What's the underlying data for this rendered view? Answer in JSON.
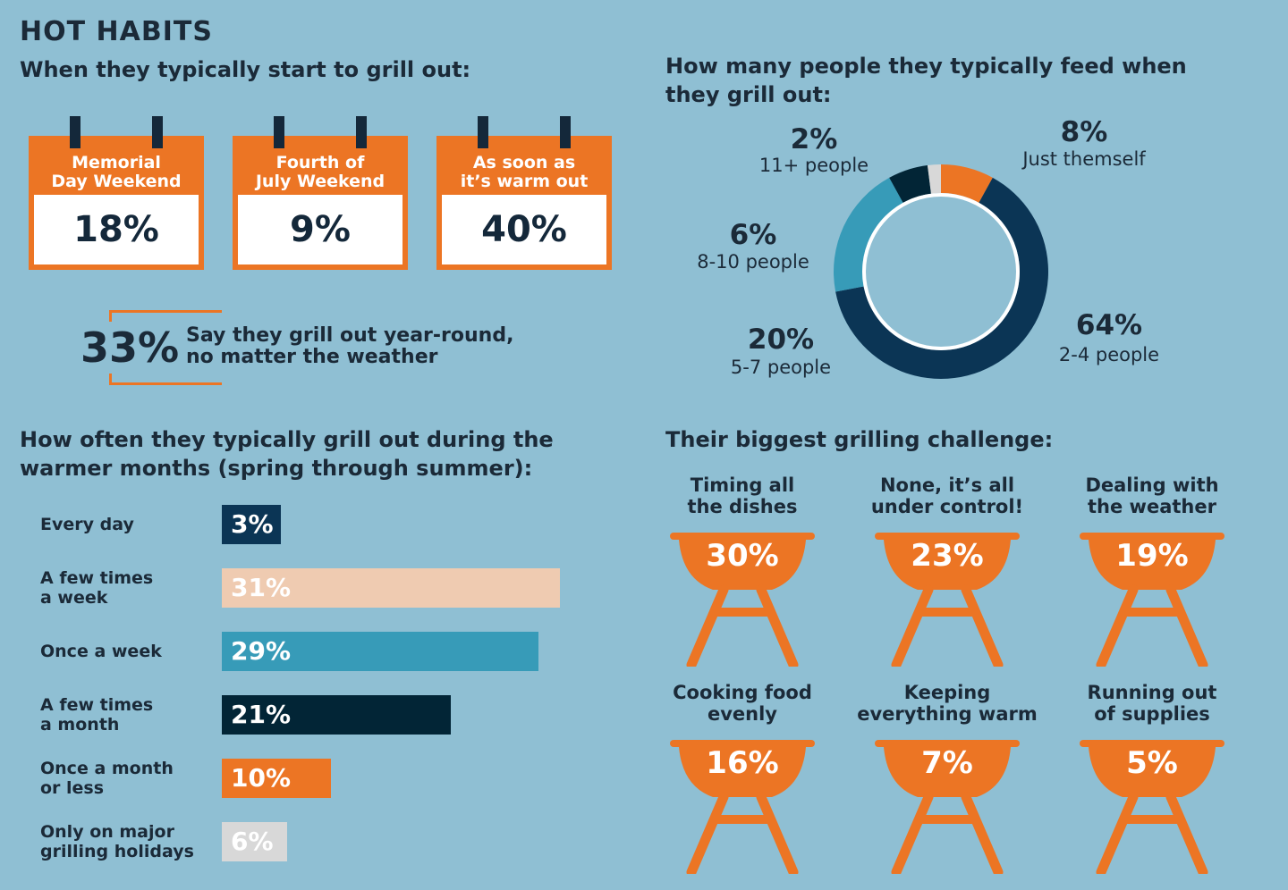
{
  "title": "HOT HABITS",
  "start": {
    "heading": "When they typically start to grill out:",
    "calendars": [
      {
        "line1": "Memorial",
        "line2": "Day Weekend",
        "value": "18%"
      },
      {
        "line1": "Fourth of",
        "line2": "July Weekend",
        "value": "9%"
      },
      {
        "line1": "As soon as",
        "line2": "it’s warm out",
        "value": "40%"
      }
    ],
    "yearround": {
      "value": "33%",
      "line1": "Say they grill out year-round,",
      "line2": "no matter the weather"
    }
  },
  "colors": {
    "background": "#8fbfd3",
    "orange": "#ec7524",
    "navy": "#0b3555",
    "dark": "#022536",
    "teal": "#379bb8",
    "peach": "#efcbb1",
    "light": "#d8d8d8",
    "white": "#ffffff"
  },
  "chart_data": [
    {
      "type": "pie",
      "title": "How many people they typically feed when they grill out:",
      "title_line1": "How many people they typically feed when",
      "title_line2": "they grill out:",
      "slices": [
        {
          "label": "Just themself",
          "pct_label": "8%",
          "value": 8,
          "color": "#ec7524"
        },
        {
          "label": "2-4 people",
          "pct_label": "64%",
          "value": 64,
          "color": "#0b3555"
        },
        {
          "label": "5-7 people",
          "pct_label": "20%",
          "value": 20,
          "color": "#379bb8"
        },
        {
          "label": "8-10 people",
          "pct_label": "6%",
          "value": 6,
          "color": "#022536"
        },
        {
          "label": "11+ people",
          "pct_label": "2%",
          "value": 2,
          "color": "#d8d8d8"
        }
      ]
    },
    {
      "type": "bar",
      "title": "How often they typically grill out during the warmer months (spring through summer):",
      "title_line1": "How often they typically grill out during the",
      "title_line2": "warmer months (spring through summer):",
      "xlim": [
        0,
        31
      ],
      "bars": [
        {
          "line1": "Every day",
          "line2": "",
          "value": 3,
          "label": "3%",
          "color": "#0b3555"
        },
        {
          "line1": "A few times",
          "line2": "a week",
          "value": 31,
          "label": "31%",
          "color": "#efcbb1"
        },
        {
          "line1": "Once a week",
          "line2": "",
          "value": 29,
          "label": "29%",
          "color": "#379bb8"
        },
        {
          "line1": "A few times",
          "line2": "a month",
          "value": 21,
          "label": "21%",
          "color": "#022536"
        },
        {
          "line1": "Once a month",
          "line2": "or less",
          "value": 10,
          "label": "10%",
          "color": "#ec7524"
        },
        {
          "line1": "Only on major",
          "line2": "grilling holidays",
          "value": 6,
          "label": "6%",
          "color": "#d8d8d8"
        }
      ]
    },
    {
      "type": "table",
      "title": "Their biggest grilling challenge:",
      "items": [
        {
          "line1": "Timing all",
          "line2": "the dishes",
          "value": "30%"
        },
        {
          "line1": "None, it’s all",
          "line2": "under control!",
          "value": "23%"
        },
        {
          "line1": "Dealing with",
          "line2": "the weather",
          "value": "19%"
        },
        {
          "line1": "Cooking food",
          "line2": "evenly",
          "value": "16%"
        },
        {
          "line1": "Keeping",
          "line2": "everything warm",
          "value": "7%"
        },
        {
          "line1": "Running out",
          "line2": "of supplies",
          "value": "5%"
        }
      ]
    }
  ]
}
